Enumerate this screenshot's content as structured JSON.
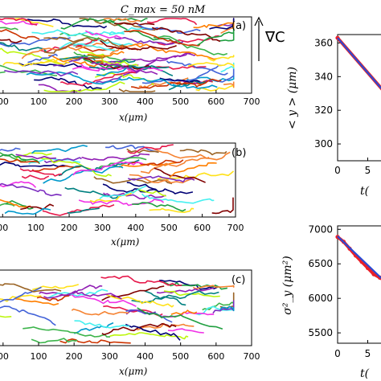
{
  "figure": {
    "top_title": "C_max = 50 nM",
    "gradient_label": "∇C"
  },
  "chart_data": [
    {
      "type": "line",
      "panel_label": "(a)",
      "xlabel": "x(μm)",
      "x_ticks": [
        "00",
        "100",
        "200",
        "300",
        "400",
        "500",
        "600",
        "700"
      ],
      "xlim": [
        -20,
        700
      ],
      "track_density": "high",
      "track_extent": "x 0 to 650 μm, full height"
    },
    {
      "type": "line",
      "panel_label": "(b)",
      "xlabel": "x(μm)",
      "x_ticks": [
        "00",
        "100",
        "200",
        "300",
        "400",
        "500",
        "600",
        "700"
      ],
      "xlim": [
        -20,
        700
      ],
      "track_density": "medium",
      "track_extent": "x 0 to 650 μm, full height"
    },
    {
      "type": "line",
      "panel_label": "(c)",
      "xlabel": "x(μm)",
      "x_ticks": [
        "00",
        "100",
        "200",
        "300",
        "400",
        "500",
        "600",
        "700"
      ],
      "xlim": [
        -20,
        700
      ],
      "track_density": "low",
      "track_extent": "x 0 to 650 μm, lower part of panel"
    },
    {
      "type": "line",
      "panel_label": "",
      "ylabel": "< y > (μm)",
      "xlabel": "t(",
      "y_ticks": [
        "360",
        "340",
        "320",
        "300"
      ],
      "x_ticks": [
        "0",
        "5"
      ],
      "ylim": [
        290,
        365
      ],
      "xlim": [
        0,
        8
      ],
      "series": [
        {
          "color": "#e8202a",
          "marker": "o",
          "x": [
            0,
            8
          ],
          "y": [
            363,
            330
          ]
        },
        {
          "color": "#2a4bd4",
          "marker": "",
          "x": [
            0,
            8
          ],
          "y": [
            363,
            330
          ]
        }
      ]
    },
    {
      "type": "line",
      "panel_label": "",
      "ylabel": "σ²_y (μm²)",
      "xlabel": "t(",
      "y_ticks": [
        "7000",
        "6500",
        "6000",
        "5500"
      ],
      "x_ticks": [
        "0",
        "5"
      ],
      "ylim": [
        5350,
        7050
      ],
      "xlim": [
        0,
        8
      ],
      "series": [
        {
          "color": "#e8202a",
          "marker": "o",
          "x": [
            0,
            1,
            2,
            3,
            4,
            5,
            6,
            7,
            8
          ],
          "y": [
            6890,
            6820,
            6720,
            6620,
            6530,
            6440,
            6350,
            6300,
            6250
          ]
        },
        {
          "color": "#2a4bd4",
          "marker": "",
          "x": [
            0,
            8
          ],
          "y": [
            6900,
            6230
          ]
        }
      ]
    }
  ],
  "colors": {
    "track_palette": [
      "#e6194b",
      "#3cb44b",
      "#ffe119",
      "#4363d8",
      "#f58231",
      "#911eb4",
      "#46f0f0",
      "#f032e6",
      "#bcf60c",
      "#008080",
      "#9a6324",
      "#800000",
      "#000075",
      "#ff7f00",
      "#1f9f3f",
      "#7b2cbf",
      "#0099cc",
      "#cc3300"
    ]
  }
}
